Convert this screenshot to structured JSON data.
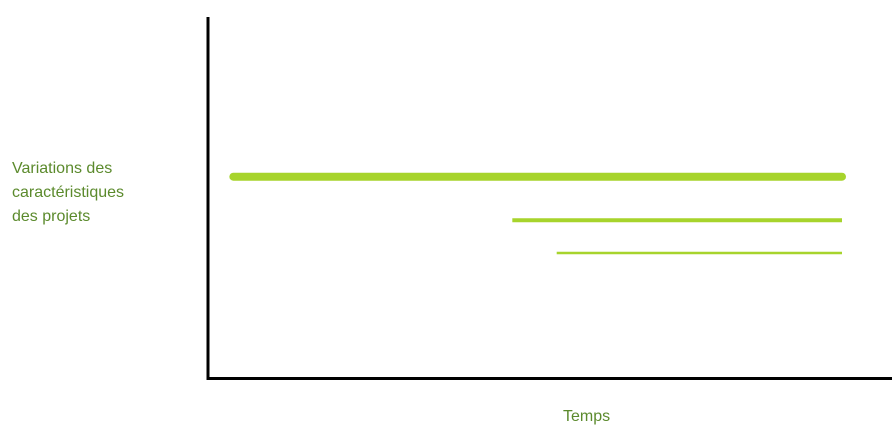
{
  "chart_data": {
    "type": "line",
    "title": "",
    "ylabel_words": {
      "line1_left": "Variations",
      "line1_right": "des",
      "line2": "caractéristiques",
      "line3": "des projets"
    },
    "xlabel": "Temps",
    "x_ticks": [],
    "y_ticks": [],
    "grid": false,
    "legend": "none",
    "line_color": "#a7d42c",
    "axis_color": "#000000",
    "label_color": "#5b8a2c",
    "series": [
      {
        "x_start": 0.04,
        "x_end": 1.0,
        "y": 0.56,
        "weight": "thick"
      },
      {
        "x_start": 0.48,
        "x_end": 1.0,
        "y": 0.44,
        "weight": "medium"
      },
      {
        "x_start": 0.55,
        "x_end": 1.0,
        "y": 0.35,
        "weight": "thin"
      }
    ]
  }
}
